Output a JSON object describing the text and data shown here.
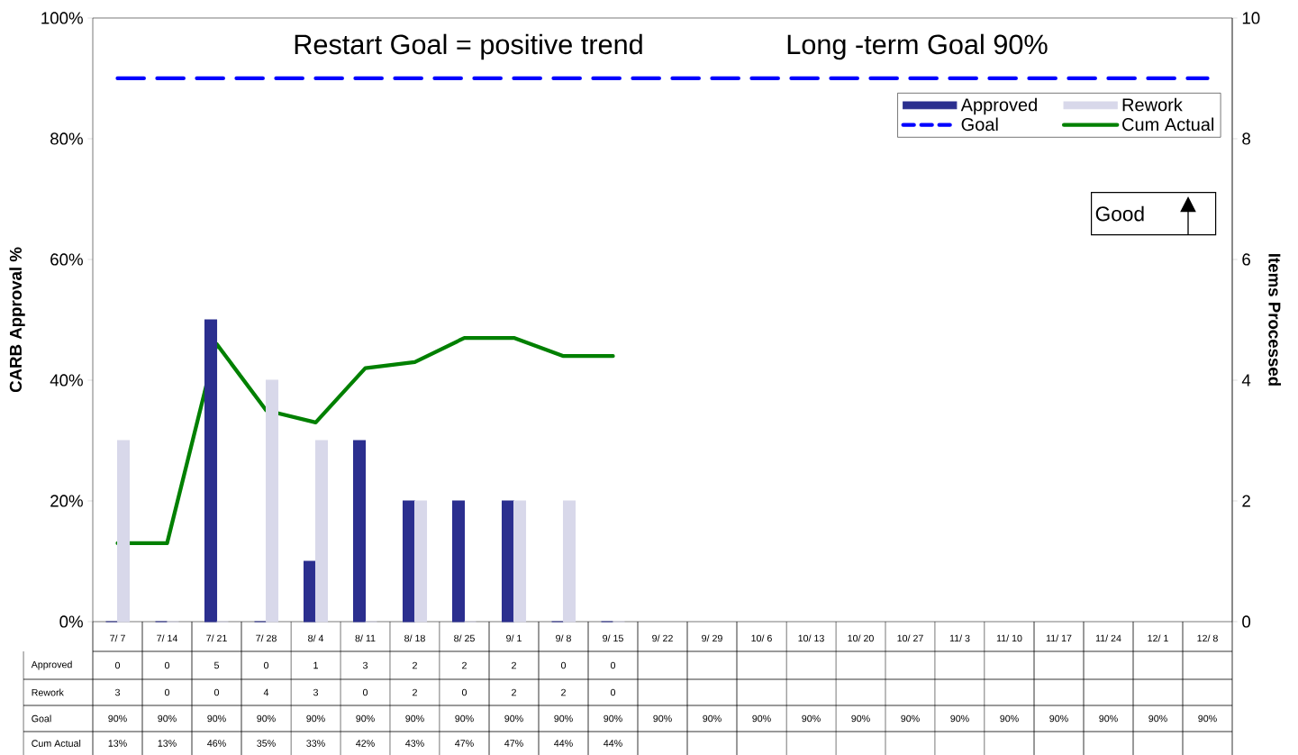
{
  "chart_data": {
    "type": "bar",
    "categories": [
      "7/ 7",
      "7/ 14",
      "7/ 21",
      "7/ 28",
      "8/ 4",
      "8/ 11",
      "8/ 18",
      "8/ 25",
      "9/ 1",
      "9/ 8",
      "9/ 15",
      "9/ 22",
      "9/ 29",
      "10/ 6",
      "10/ 13",
      "10/ 20",
      "10/ 27",
      "11/ 3",
      "11/ 10",
      "11/ 17",
      "11/ 24",
      "12/ 1",
      "12/ 8"
    ],
    "annotations": [
      "Restart Goal = positive trend",
      "Long -term Goal 90%",
      "Good"
    ],
    "ylabel": "CARB Approval %",
    "y2label": "Items Processed",
    "ylim": [
      0,
      100
    ],
    "yticks": [
      {
        "value": 0,
        "label": "0%"
      },
      {
        "value": 20,
        "label": "20%"
      },
      {
        "value": 40,
        "label": "40%"
      },
      {
        "value": 60,
        "label": "60%"
      },
      {
        "value": 80,
        "label": "80%"
      },
      {
        "value": 100,
        "label": "100%"
      }
    ],
    "y2lim": [
      0,
      10
    ],
    "y2ticks": [
      0,
      2,
      4,
      6,
      8,
      10
    ],
    "legend": "top right",
    "series": [
      {
        "name": "Approved",
        "axis": "y2",
        "color": "#2b2f8f",
        "values": [
          0,
          0,
          5,
          0,
          1,
          3,
          2,
          2,
          2,
          0,
          0,
          null,
          null,
          null,
          null,
          null,
          null,
          null,
          null,
          null,
          null,
          null,
          null
        ],
        "value_labels": [
          "0",
          "0",
          "5",
          "0",
          "1",
          "3",
          "2",
          "2",
          "2",
          "0",
          "0",
          null,
          null,
          null,
          null,
          null,
          null,
          null,
          null,
          null,
          null,
          null,
          null
        ]
      },
      {
        "name": "Rework",
        "axis": "y2",
        "color": "#d8d8ea",
        "values": [
          3,
          0,
          0,
          4,
          3,
          0,
          2,
          0,
          2,
          2,
          0,
          null,
          null,
          null,
          null,
          null,
          null,
          null,
          null,
          null,
          null,
          null,
          null
        ],
        "value_labels": [
          "3",
          "0",
          "0",
          "4",
          "3",
          "0",
          "2",
          "0",
          "2",
          "2",
          "0",
          null,
          null,
          null,
          null,
          null,
          null,
          null,
          null,
          null,
          null,
          null,
          null
        ]
      },
      {
        "name": "Goal",
        "type": "line",
        "color": "#0000ff",
        "line_style": "dashed",
        "values": [
          90,
          90,
          90,
          90,
          90,
          90,
          90,
          90,
          90,
          90,
          90,
          90,
          90,
          90,
          90,
          90,
          90,
          90,
          90,
          90,
          90,
          90,
          90
        ],
        "value_labels": [
          "90%",
          "90%",
          "90%",
          "90%",
          "90%",
          "90%",
          "90%",
          "90%",
          "90%",
          "90%",
          "90%",
          "90%",
          "90%",
          "90%",
          "90%",
          "90%",
          "90%",
          "90%",
          "90%",
          "90%",
          "90%",
          "90%",
          "90%"
        ]
      },
      {
        "name": "Cum Actual",
        "type": "line",
        "color": "#008000",
        "line_style": "solid",
        "values": [
          13,
          13,
          46,
          35,
          33,
          42,
          43,
          47,
          47,
          44,
          44,
          null,
          null,
          null,
          null,
          null,
          null,
          null,
          null,
          null,
          null,
          null,
          null
        ],
        "value_labels": [
          "13%",
          "13%",
          "46%",
          "35%",
          "33%",
          "42%",
          "43%",
          "47%",
          "47%",
          "44%",
          "44%",
          null,
          null,
          null,
          null,
          null,
          null,
          null,
          null,
          null,
          null,
          null,
          null
        ]
      }
    ]
  }
}
